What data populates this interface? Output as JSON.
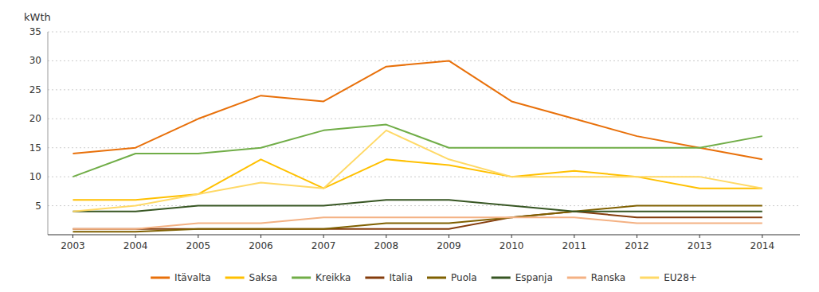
{
  "chart_data": {
    "type": "line",
    "ylabel": "kWth",
    "x": [
      2003,
      2004,
      2005,
      2006,
      2007,
      2008,
      2009,
      2010,
      2011,
      2012,
      2013,
      2014
    ],
    "xlim": [
      2002.6,
      2014.6
    ],
    "xticks": [
      2003,
      2004,
      2005,
      2006,
      2007,
      2008,
      2009,
      2010,
      2011,
      2012,
      2013,
      2014
    ],
    "ylim": [
      0,
      35
    ],
    "yticks": [
      5,
      10,
      15,
      20,
      25,
      30,
      35
    ],
    "grid": true,
    "legend": "bottom",
    "series": [
      {
        "name": "Itävalta",
        "color": "#E8700A",
        "values": [
          14,
          15,
          20,
          24,
          23,
          29,
          30,
          23,
          20,
          17,
          15,
          13
        ]
      },
      {
        "name": "Saksa",
        "color": "#FFC000",
        "values": [
          6,
          6,
          7,
          13,
          8,
          13,
          12,
          10,
          11,
          10,
          8,
          8
        ]
      },
      {
        "name": "Kreikka",
        "color": "#70AD47",
        "values": [
          10,
          14,
          14,
          15,
          18,
          19,
          15,
          15,
          15,
          15,
          15,
          17
        ]
      },
      {
        "name": "Italia",
        "color": "#843C0C",
        "values": [
          1,
          1,
          1,
          1,
          1,
          1,
          1,
          3,
          4,
          3,
          3,
          3
        ]
      },
      {
        "name": "Puola",
        "color": "#7F6000",
        "values": [
          0.5,
          0.5,
          1,
          1,
          1,
          2,
          2,
          3,
          4,
          5,
          5,
          5
        ]
      },
      {
        "name": "Espanja",
        "color": "#375623",
        "values": [
          4,
          4,
          5,
          5,
          5,
          6,
          6,
          5,
          4,
          4,
          4,
          4
        ]
      },
      {
        "name": "Ranska",
        "color": "#F4B183",
        "values": [
          1,
          1,
          2,
          2,
          3,
          3,
          3,
          3,
          3,
          2,
          2,
          2
        ]
      },
      {
        "name": "EU28+",
        "color": "#FFD966",
        "values": [
          4,
          5,
          7,
          9,
          8,
          18,
          13,
          10,
          10,
          10,
          10,
          8
        ]
      }
    ]
  }
}
